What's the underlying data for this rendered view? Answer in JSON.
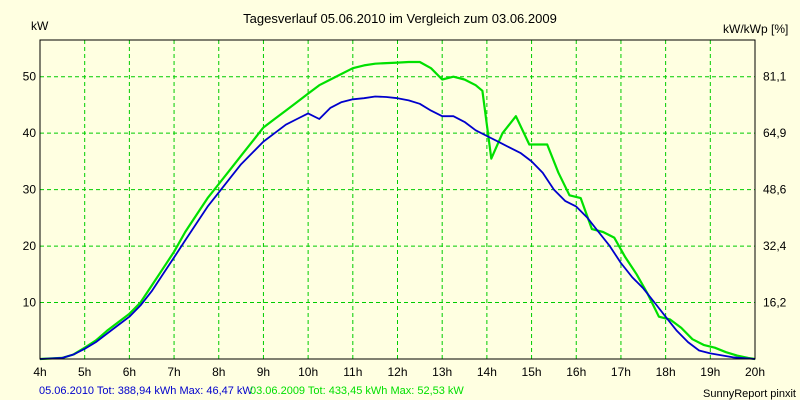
{
  "chart_data": {
    "type": "line",
    "title": "Tagesverlauf 05.06.2010 im Vergleich zum 03.06.2009",
    "ylabel_left": "kW",
    "ylabel_right": "kW/kWp [%]",
    "x_ticks": [
      "4h",
      "5h",
      "6h",
      "7h",
      "8h",
      "9h",
      "10h",
      "11h",
      "12h",
      "13h",
      "14h",
      "15h",
      "16h",
      "17h",
      "18h",
      "19h",
      "20h"
    ],
    "x_range": [
      4,
      20
    ],
    "y_left_range": [
      0,
      56.5
    ],
    "y_left_ticks": [
      10,
      20,
      30,
      40,
      50
    ],
    "y_right_ticks": [
      "16,2",
      "32,4",
      "48,6",
      "64,9",
      "81,1"
    ],
    "grid": true,
    "series": [
      {
        "name": "05.06.2010",
        "color": "#0000cc",
        "x": [
          4.0,
          4.5,
          4.75,
          5.0,
          5.25,
          5.5,
          5.75,
          6.0,
          6.25,
          6.5,
          6.75,
          7.0,
          7.25,
          7.5,
          7.75,
          8.0,
          8.25,
          8.5,
          8.75,
          9.0,
          9.25,
          9.5,
          9.75,
          10.0,
          10.25,
          10.5,
          10.75,
          11.0,
          11.25,
          11.5,
          11.75,
          12.0,
          12.25,
          12.5,
          12.75,
          13.0,
          13.25,
          13.5,
          13.75,
          14.0,
          14.25,
          14.5,
          14.75,
          15.0,
          15.25,
          15.5,
          15.75,
          16.0,
          16.25,
          16.5,
          16.75,
          17.0,
          17.25,
          17.5,
          17.75,
          18.0,
          18.25,
          18.5,
          18.75,
          19.0,
          19.5,
          20.0
        ],
        "y": [
          0,
          0.2,
          0.8,
          1.8,
          3.0,
          4.5,
          6.0,
          7.5,
          9.5,
          12,
          15,
          18,
          21,
          24,
          27,
          29.5,
          32,
          34.5,
          36.5,
          38.5,
          40,
          41.5,
          42.5,
          43.5,
          42.5,
          44.5,
          45.5,
          46,
          46.2,
          46.5,
          46.4,
          46.2,
          45.8,
          45.2,
          44,
          43,
          43,
          42,
          40.5,
          39.5,
          38.5,
          37.5,
          36.5,
          35,
          33,
          30,
          28,
          27,
          25,
          22.5,
          20,
          17,
          14.5,
          12.5,
          10,
          7.5,
          5,
          3,
          1.5,
          1,
          0.3,
          0
        ]
      },
      {
        "name": "03.06.2009",
        "color": "#00e000",
        "x": [
          4.0,
          4.5,
          4.75,
          5.0,
          5.25,
          5.5,
          5.75,
          6.0,
          6.25,
          6.5,
          6.75,
          7.0,
          7.25,
          7.5,
          7.75,
          8.0,
          8.25,
          8.5,
          8.75,
          9.0,
          9.25,
          9.5,
          9.75,
          10.0,
          10.25,
          10.5,
          10.75,
          11.0,
          11.25,
          11.5,
          11.75,
          12.0,
          12.25,
          12.5,
          12.75,
          13.0,
          13.25,
          13.5,
          13.75,
          13.9,
          14.1,
          14.35,
          14.65,
          14.95,
          15.35,
          15.6,
          15.85,
          16.1,
          16.35,
          16.6,
          16.85,
          17.1,
          17.35,
          17.6,
          17.85,
          18.1,
          18.35,
          18.6,
          18.85,
          19.1,
          19.35,
          19.6,
          19.85,
          20.0
        ],
        "y": [
          0,
          0.2,
          0.8,
          2.0,
          3.3,
          5.0,
          6.5,
          8,
          10,
          13,
          16,
          19,
          22.5,
          25.5,
          28.5,
          31,
          33.5,
          36,
          38.5,
          41,
          42.5,
          44,
          45.5,
          47,
          48.5,
          49.5,
          50.5,
          51.5,
          52,
          52.3,
          52.4,
          52.5,
          52.6,
          52.6,
          51.5,
          49.5,
          50,
          49.5,
          48.5,
          47.5,
          35.5,
          40,
          43,
          38,
          38,
          33,
          29,
          28.5,
          23,
          22.5,
          21.5,
          18,
          15,
          11.5,
          7.5,
          7,
          5.5,
          3.5,
          2.5,
          2,
          1.2,
          0.6,
          0.2,
          0
        ]
      }
    ]
  },
  "footer": {
    "legend1_text": "05.06.2010 Tot: 388,94 kWh Max: 46,47 kW",
    "legend1_color": "#0000cc",
    "legend2_text": "03.06.2009 Tot: 433,45 kWh Max: 52,53 kW",
    "legend2_color": "#00e000",
    "credit": "SunnyReport pinxit"
  }
}
